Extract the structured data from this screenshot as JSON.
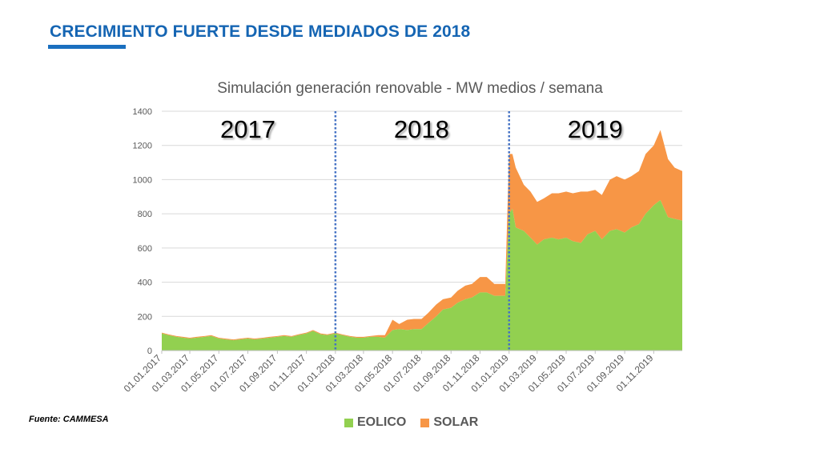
{
  "slide": {
    "title": "CRECIMIENTO FUERTE DESDE MEDIADOS DE 2018",
    "source": "Fuente: CAMMESA"
  },
  "chart_data": {
    "type": "area",
    "stacked": true,
    "title": "Simulación generación renovable - MW medios / semana",
    "ylim": [
      0,
      1400
    ],
    "yticks": [
      0,
      200,
      400,
      600,
      800,
      1000,
      1200,
      1400
    ],
    "grid": true,
    "legend_position": "bottom",
    "x_start": "01.01.2017",
    "x_end": "31.12.2019",
    "x_tick_labels": [
      "01.01.2017",
      "01.03.2017",
      "01.05.2017",
      "01.07.2017",
      "01.09.2017",
      "01.11.2017",
      "01.01.2018",
      "01.03.2018",
      "01.05.2018",
      "01.07.2018",
      "01.09.2018",
      "01.11.2018",
      "01.01.2019",
      "01.03.2019",
      "01.05.2019",
      "01.07.2019",
      "01.09.2019",
      "01.11.2019"
    ],
    "year_markers": [
      {
        "label": "2017",
        "x": "01.07.2017"
      },
      {
        "label": "2018",
        "x": "01.07.2018",
        "divider": "01.01.2018"
      },
      {
        "label": "2019",
        "x": "01.07.2019",
        "divider": "01.01.2019"
      }
    ],
    "colors": {
      "EOLICO": "#92d050",
      "SOLAR": "#f79646",
      "divider": "#4472c4"
    },
    "x": [
      "01.01.2017",
      "15.01.2017",
      "01.02.2017",
      "15.02.2017",
      "01.03.2017",
      "15.03.2017",
      "01.04.2017",
      "15.04.2017",
      "01.05.2017",
      "15.05.2017",
      "01.06.2017",
      "15.06.2017",
      "01.07.2017",
      "15.07.2017",
      "01.08.2017",
      "15.08.2017",
      "01.09.2017",
      "15.09.2017",
      "01.10.2017",
      "15.10.2017",
      "01.11.2017",
      "15.11.2017",
      "01.12.2017",
      "15.12.2017",
      "01.01.2018",
      "15.01.2018",
      "01.02.2018",
      "15.02.2018",
      "01.03.2018",
      "15.03.2018",
      "01.04.2018",
      "15.04.2018",
      "01.05.2018",
      "15.05.2018",
      "01.06.2018",
      "15.06.2018",
      "01.07.2018",
      "15.07.2018",
      "01.08.2018",
      "15.08.2018",
      "01.09.2018",
      "15.09.2018",
      "01.10.2018",
      "15.10.2018",
      "01.11.2018",
      "15.11.2018",
      "01.12.2018",
      "15.12.2018",
      "24.12.2018",
      "01.01.2019",
      "08.01.2019",
      "15.01.2019",
      "01.02.2019",
      "15.02.2019",
      "01.03.2019",
      "15.03.2019",
      "01.04.2019",
      "15.04.2019",
      "01.05.2019",
      "15.05.2019",
      "01.06.2019",
      "15.06.2019",
      "01.07.2019",
      "15.07.2019",
      "01.08.2019",
      "15.08.2019",
      "01.09.2019",
      "15.09.2019",
      "01.10.2019",
      "15.10.2019",
      "01.11.2019",
      "15.11.2019",
      "01.12.2019",
      "15.12.2019",
      "31.12.2019"
    ],
    "series": [
      {
        "name": "EOLICO",
        "values": [
          100,
          90,
          80,
          75,
          70,
          75,
          80,
          85,
          70,
          65,
          60,
          65,
          70,
          65,
          70,
          75,
          80,
          85,
          80,
          90,
          100,
          115,
          95,
          90,
          100,
          90,
          80,
          75,
          75,
          80,
          80,
          75,
          120,
          125,
          120,
          125,
          125,
          160,
          200,
          240,
          250,
          280,
          300,
          310,
          340,
          340,
          320,
          320,
          320,
          800,
          830,
          720,
          700,
          660,
          620,
          650,
          660,
          650,
          660,
          640,
          630,
          680,
          700,
          650,
          700,
          710,
          690,
          720,
          740,
          800,
          850,
          880,
          780,
          770,
          760
        ]
      },
      {
        "name": "SOLAR",
        "values": [
          5,
          5,
          5,
          5,
          5,
          5,
          5,
          5,
          5,
          5,
          5,
          5,
          5,
          5,
          5,
          5,
          5,
          5,
          5,
          5,
          5,
          5,
          5,
          5,
          5,
          5,
          5,
          5,
          5,
          5,
          10,
          15,
          60,
          30,
          60,
          60,
          60,
          60,
          70,
          60,
          60,
          70,
          80,
          80,
          90,
          90,
          70,
          70,
          70,
          350,
          320,
          350,
          270,
          270,
          250,
          240,
          260,
          270,
          270,
          280,
          300,
          250,
          240,
          260,
          300,
          310,
          310,
          300,
          310,
          350,
          350,
          410,
          340,
          300,
          290
        ]
      }
    ]
  }
}
